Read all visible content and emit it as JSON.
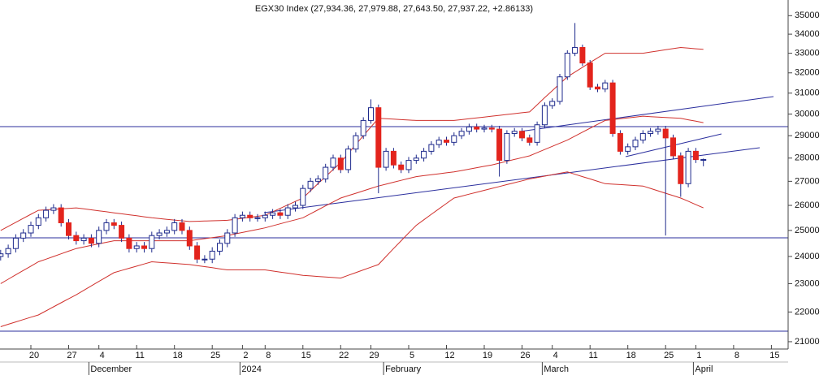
{
  "chart_data": {
    "type": "candlestick",
    "title": "EGX30 Index (27,934.36, 27,979.88, 27,643.50, 27,937.22, +2.86133)",
    "categories": [
      null,
      null,
      null,
      null,
      "20",
      null,
      null,
      null,
      null,
      "27",
      null,
      null,
      null,
      "4",
      null,
      null,
      null,
      null,
      "11",
      null,
      null,
      null,
      null,
      "18",
      null,
      null,
      null,
      null,
      "25",
      null,
      null,
      null,
      "2",
      null,
      null,
      "8",
      null,
      null,
      null,
      null,
      "15",
      null,
      null,
      null,
      null,
      "22",
      null,
      null,
      null,
      "29",
      null,
      null,
      null,
      null,
      "5",
      null,
      null,
      null,
      null,
      "12",
      null,
      null,
      null,
      null,
      "19",
      null,
      null,
      null,
      null,
      "26",
      null,
      null,
      null,
      "4",
      null,
      null,
      null,
      null,
      "11",
      null,
      null,
      null,
      null,
      "18",
      null,
      null,
      null,
      null,
      "25",
      null,
      null,
      null,
      "1",
      null,
      null,
      null,
      null,
      "8",
      null,
      null,
      null,
      null,
      "15"
    ],
    "month_categories": [
      null,
      null,
      null,
      null,
      null,
      null,
      null,
      null,
      null,
      null,
      null,
      null,
      "December",
      null,
      null,
      null,
      null,
      null,
      null,
      null,
      null,
      null,
      null,
      null,
      null,
      null,
      null,
      null,
      null,
      null,
      null,
      null,
      "2024",
      null,
      null,
      null,
      null,
      null,
      null,
      null,
      null,
      null,
      null,
      null,
      null,
      null,
      null,
      null,
      null,
      null,
      null,
      "February",
      null,
      null,
      null,
      null,
      null,
      null,
      null,
      null,
      null,
      null,
      null,
      null,
      null,
      null,
      null,
      null,
      null,
      null,
      null,
      null,
      "March",
      null,
      null,
      null,
      null,
      null,
      null,
      null,
      null,
      null,
      null,
      null,
      null,
      null,
      null,
      null,
      null,
      null,
      null,
      null,
      "April",
      null,
      null,
      null,
      null,
      null,
      null,
      null,
      null,
      null,
      null
    ],
    "open": [
      24000,
      24100,
      24300,
      24700,
      24900,
      25200,
      25500,
      25800,
      25900,
      25300,
      24800,
      24600,
      24700,
      24500,
      25000,
      25300,
      25200,
      24700,
      24300,
      24400,
      24300,
      24800,
      24900,
      25000,
      25300,
      25000,
      24400,
      23900,
      23900,
      24200,
      24500,
      24900,
      25500,
      25600,
      25500,
      25500,
      25600,
      25700,
      25600,
      25900,
      26000,
      26700,
      27000,
      27100,
      27600,
      28000,
      27500,
      28400,
      29000,
      29700,
      30300,
      27600,
      28300,
      27700,
      27500,
      27900,
      28000,
      28300,
      28600,
      28800,
      28700,
      29000,
      29200,
      29400,
      29300,
      29350,
      29300,
      27900,
      29100,
      29200,
      28900,
      28700,
      29500,
      30400,
      30600,
      31800,
      33000,
      33300,
      32500,
      31300,
      31200,
      31500,
      29100,
      28300,
      28500,
      28800,
      29100,
      29200,
      29300,
      28900,
      28100,
      26900,
      28300,
      27934.36,
      null,
      null,
      null,
      null,
      null,
      null,
      null,
      null,
      null
    ],
    "high": [
      24250,
      24450,
      24850,
      25050,
      25350,
      25650,
      25950,
      26050,
      26050,
      25450,
      24950,
      24850,
      24850,
      25150,
      25450,
      25450,
      25350,
      24850,
      24550,
      24550,
      24950,
      25050,
      25150,
      25450,
      25450,
      25150,
      24550,
      24050,
      24350,
      24650,
      25050,
      25650,
      25750,
      25750,
      25650,
      25750,
      25850,
      25850,
      26050,
      26150,
      26850,
      27150,
      27250,
      27750,
      28150,
      28150,
      28550,
      29150,
      29850,
      30700,
      30450,
      28450,
      28450,
      27850,
      28050,
      28150,
      28450,
      28750,
      28950,
      28950,
      29150,
      29350,
      29550,
      29550,
      29500,
      29500,
      29450,
      29250,
      29350,
      29350,
      29050,
      29650,
      30550,
      30750,
      31950,
      33150,
      34600,
      33450,
      32650,
      31450,
      31650,
      31650,
      29250,
      28650,
      28950,
      29250,
      29350,
      29450,
      29450,
      29050,
      28250,
      28450,
      28450,
      27979.88,
      null,
      null,
      null,
      null,
      null,
      null,
      null,
      null,
      null
    ],
    "low": [
      23850,
      23950,
      24150,
      24550,
      24750,
      25050,
      25350,
      25650,
      25150,
      24650,
      24450,
      24450,
      24350,
      24350,
      24850,
      25050,
      24550,
      24150,
      24150,
      24150,
      24150,
      24650,
      24750,
      24850,
      24850,
      24250,
      23750,
      23750,
      23750,
      24050,
      24350,
      24750,
      25350,
      25350,
      25350,
      25350,
      25450,
      25450,
      25450,
      25750,
      25850,
      26550,
      26850,
      26950,
      27450,
      27350,
      27350,
      28250,
      28850,
      29550,
      26500,
      27450,
      27550,
      27350,
      27350,
      27750,
      27850,
      28150,
      28450,
      28550,
      28550,
      28850,
      29050,
      29150,
      29150,
      29150,
      27200,
      27750,
      28950,
      28750,
      28550,
      28550,
      29350,
      30250,
      30450,
      31650,
      32850,
      32350,
      31150,
      31050,
      31050,
      28950,
      28150,
      28150,
      28350,
      28650,
      28950,
      29050,
      24800,
      27950,
      26350,
      26750,
      27784,
      27643.5,
      null,
      null,
      null,
      null,
      null,
      null,
      null,
      null,
      null
    ],
    "close": [
      24100,
      24300,
      24700,
      24900,
      25200,
      25500,
      25800,
      25900,
      25300,
      24800,
      24600,
      24700,
      24500,
      25000,
      25300,
      25200,
      24700,
      24300,
      24400,
      24300,
      24800,
      24900,
      25000,
      25300,
      25000,
      24400,
      23900,
      23900,
      24200,
      24500,
      24900,
      25500,
      25600,
      25500,
      25500,
      25600,
      25700,
      25600,
      25900,
      26000,
      26700,
      27000,
      27100,
      27600,
      28000,
      27500,
      28400,
      29000,
      29700,
      30300,
      27600,
      28300,
      27700,
      27500,
      27900,
      28000,
      28300,
      28600,
      28800,
      28700,
      29000,
      29200,
      29400,
      29300,
      29350,
      29300,
      27900,
      29100,
      29200,
      28900,
      28700,
      29500,
      30400,
      30600,
      31800,
      33000,
      33300,
      32500,
      31300,
      31200,
      31500,
      29100,
      28300,
      28500,
      28800,
      29100,
      29200,
      29300,
      28900,
      28100,
      26900,
      28300,
      27934,
      27937.22,
      null,
      null,
      null,
      null,
      null,
      null,
      null,
      null,
      null
    ],
    "bands": [
      {
        "color": "#d0312d",
        "values": [
          25000,
          25160,
          25320,
          25480,
          25640,
          25800,
          25820,
          25840,
          25860,
          25880,
          25900,
          25860,
          25820,
          25780,
          25740,
          25700,
          25660,
          25620,
          25580,
          25540,
          25500,
          25470,
          25440,
          25410,
          25380,
          25350,
          25360,
          25370,
          25380,
          25390,
          25400,
          25440,
          25480,
          25520,
          25560,
          25600,
          25740,
          25880,
          26020,
          26160,
          26300,
          26600,
          26900,
          27200,
          27500,
          27800,
          28200,
          28600,
          29000,
          29400,
          29800,
          29780,
          29760,
          29740,
          29720,
          29700,
          29700,
          29700,
          29700,
          29700,
          29700,
          29740,
          29780,
          29820,
          29860,
          29900,
          29940,
          29980,
          30020,
          30060,
          30100,
          30440,
          30780,
          31120,
          31460,
          31800,
          32040,
          32280,
          32520,
          32760,
          33000,
          33000,
          33000,
          33000,
          33000,
          33000,
          33060,
          33120,
          33180,
          33240,
          33300,
          33270,
          33230,
          33200,
          null,
          null,
          null,
          null,
          null,
          null,
          null,
          null,
          null
        ]
      },
      {
        "color": "#d0312d",
        "values": [
          23000,
          23160,
          23320,
          23480,
          23640,
          23800,
          23900,
          24000,
          24100,
          24200,
          24300,
          24360,
          24420,
          24480,
          24540,
          24600,
          24600,
          24600,
          24600,
          24600,
          24600,
          24600,
          24600,
          24600,
          24600,
          24600,
          24640,
          24680,
          24720,
          24760,
          24800,
          24860,
          24920,
          24980,
          25040,
          25100,
          25180,
          25260,
          25340,
          25420,
          25500,
          25660,
          25820,
          25980,
          26140,
          26300,
          26400,
          26500,
          26600,
          26700,
          26800,
          26880,
          26960,
          27040,
          27120,
          27200,
          27240,
          27280,
          27320,
          27360,
          27400,
          27460,
          27520,
          27580,
          27640,
          27700,
          27780,
          27860,
          27940,
          28020,
          28100,
          28240,
          28380,
          28520,
          28660,
          28800,
          28980,
          29160,
          29340,
          29520,
          29700,
          29740,
          29780,
          29820,
          29860,
          29900,
          29880,
          29860,
          29840,
          29820,
          29800,
          29730,
          29670,
          29600,
          null,
          null,
          null,
          null,
          null,
          null,
          null,
          null,
          null
        ]
      },
      {
        "color": "#d0312d",
        "values": [
          21500,
          21580,
          21660,
          21740,
          21820,
          21900,
          22040,
          22180,
          22320,
          22460,
          22600,
          22760,
          22920,
          23080,
          23240,
          23400,
          23480,
          23560,
          23640,
          23720,
          23800,
          23780,
          23760,
          23740,
          23720,
          23700,
          23660,
          23620,
          23580,
          23540,
          23500,
          23500,
          23500,
          23500,
          23500,
          23500,
          23460,
          23420,
          23380,
          23340,
          23300,
          23280,
          23260,
          23240,
          23220,
          23200,
          23300,
          23400,
          23500,
          23600,
          23700,
          24000,
          24300,
          24600,
          24900,
          25200,
          25420,
          25640,
          25860,
          26080,
          26300,
          26380,
          26460,
          26540,
          26620,
          26700,
          26780,
          26860,
          26940,
          27020,
          27100,
          27160,
          27220,
          27280,
          27340,
          27400,
          27300,
          27200,
          27100,
          27000,
          26900,
          26880,
          26860,
          26840,
          26820,
          26800,
          26700,
          26600,
          26500,
          26400,
          26300,
          26170,
          26030,
          25900,
          null,
          null,
          null,
          null,
          null,
          null,
          null,
          null,
          null
        ]
      }
    ],
    "up_color": "#ffffff",
    "down_color": "#e3241d",
    "edge_color": "#1e2a8c",
    "log_scale": true,
    "ylim": [
      20760,
      35870
    ],
    "yticks": [
      21000,
      22000,
      23000,
      24000,
      25000,
      26000,
      27000,
      28000,
      29000,
      30000,
      31000,
      32000,
      33000,
      34000,
      35000
    ]
  }
}
